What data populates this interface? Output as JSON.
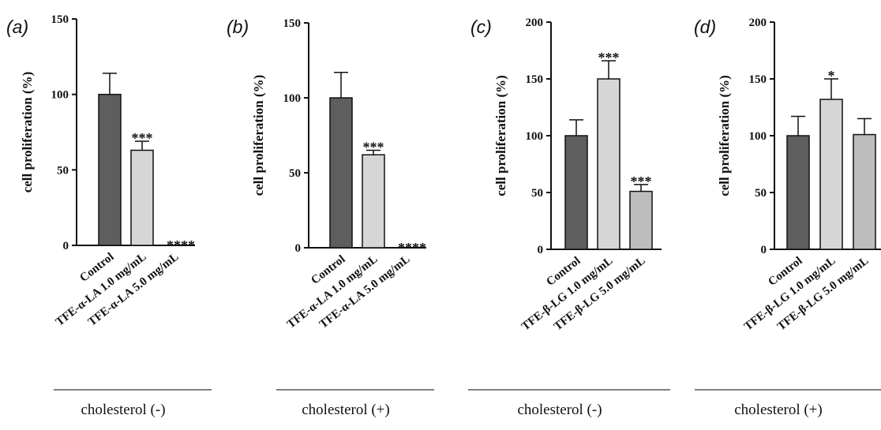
{
  "chart_data": [
    {
      "type": "bar",
      "panel_label": "(a)",
      "ylabel": "cell proliferation (%)",
      "ylim": [
        0,
        150
      ],
      "yticks": [
        "0",
        "50",
        "100",
        "150"
      ],
      "categories": [
        "Control",
        "TFE-α-LA 1.0 mg/mL",
        "TFE-α-LA 5.0 mg/mL"
      ],
      "values": [
        100,
        63,
        0
      ],
      "errors": [
        14,
        6,
        0
      ],
      "significance": [
        "",
        "***",
        "****"
      ],
      "group_label": "cholesterol (-)",
      "colors": [
        "#5e5e5e",
        "#d6d6d6",
        "#bdbdbd"
      ]
    },
    {
      "type": "bar",
      "panel_label": "(b)",
      "ylabel": "cell proliferation (%)",
      "ylim": [
        0,
        150
      ],
      "yticks": [
        "0",
        "50",
        "100",
        "150"
      ],
      "categories": [
        "Control",
        "TFE-α-LA 1.0 mg/mL",
        "TFE-α-LA 5.0 mg/mL"
      ],
      "values": [
        100,
        62,
        0
      ],
      "errors": [
        17,
        3,
        0
      ],
      "significance": [
        "",
        "***",
        "****"
      ],
      "group_label": "cholesterol (+)",
      "colors": [
        "#5e5e5e",
        "#d6d6d6",
        "#bdbdbd"
      ]
    },
    {
      "type": "bar",
      "panel_label": "(c)",
      "ylabel": "cell proliferation (%)",
      "ylim": [
        0,
        200
      ],
      "yticks": [
        "0",
        "50",
        "100",
        "150",
        "200"
      ],
      "categories": [
        "Control",
        "TFE-β-LG 1.0 mg/mL",
        "TFE-β-LG 5.0 mg/mL"
      ],
      "values": [
        100,
        150,
        51
      ],
      "errors": [
        14,
        16,
        6
      ],
      "significance": [
        "",
        "***",
        "***"
      ],
      "group_label": "cholesterol (-)",
      "colors": [
        "#5e5e5e",
        "#d6d6d6",
        "#bdbdbd"
      ]
    },
    {
      "type": "bar",
      "panel_label": "(d)",
      "ylabel": "cell proliferation (%)",
      "ylim": [
        0,
        200
      ],
      "yticks": [
        "0",
        "50",
        "100",
        "150",
        "200"
      ],
      "categories": [
        "Control",
        "TFE-β-LG 1.0 mg/mL",
        "TFE-β-LG 5.0 mg/mL"
      ],
      "values": [
        100,
        132,
        101
      ],
      "errors": [
        17,
        18,
        14
      ],
      "significance": [
        "",
        "*",
        ""
      ],
      "group_label": "cholesterol (+)",
      "colors": [
        "#5e5e5e",
        "#d6d6d6",
        "#bdbdbd"
      ]
    }
  ]
}
